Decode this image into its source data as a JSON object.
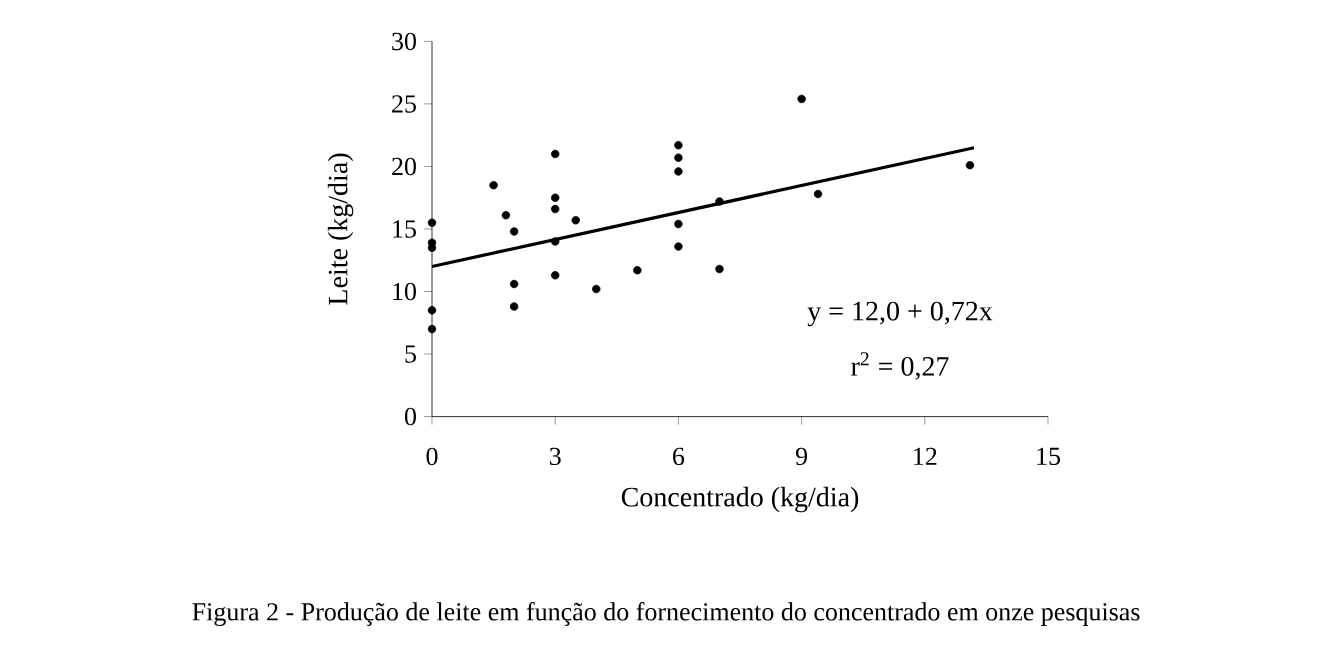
{
  "chart_data": {
    "type": "scatter",
    "xlabel": "Concentrado (kg/dia)",
    "ylabel": "Leite (kg/dia)",
    "xlim": [
      0,
      15
    ],
    "ylim": [
      0,
      30
    ],
    "xticks": [
      0,
      3,
      6,
      9,
      12,
      15
    ],
    "yticks": [
      0,
      5,
      10,
      15,
      20,
      25,
      30
    ],
    "grid": false,
    "marker": "circle",
    "series": [
      {
        "color": "#000000",
        "x": [
          0,
          0,
          0,
          0,
          0,
          1.5,
          1.8,
          2.0,
          2.0,
          2.0,
          3,
          3,
          3,
          3,
          3,
          3.5,
          4.0,
          5.0,
          6,
          6,
          6,
          6,
          6,
          7.0,
          7.0,
          9.0,
          9.4,
          13.1
        ],
        "values": [
          15.5,
          13.9,
          13.5,
          8.5,
          7.0,
          18.5,
          16.1,
          14.8,
          10.6,
          8.8,
          21.0,
          17.5,
          16.6,
          14.0,
          11.3,
          15.7,
          10.2,
          11.7,
          21.7,
          20.7,
          19.6,
          15.4,
          13.6,
          17.2,
          11.8,
          25.4,
          17.8,
          20.1
        ]
      },
      {
        "type": "line",
        "color": "#000000",
        "marker": "none",
        "x": [
          0,
          13.2
        ],
        "values": [
          12.0,
          21.5
        ]
      }
    ],
    "annotations": [
      "y = 12,0 + 0,72x",
      "r$^{2}$ = 0,27",
      "Figura 2 - Produção de leite em função do fornecimento do concentrado em onze pesquisas"
    ]
  }
}
